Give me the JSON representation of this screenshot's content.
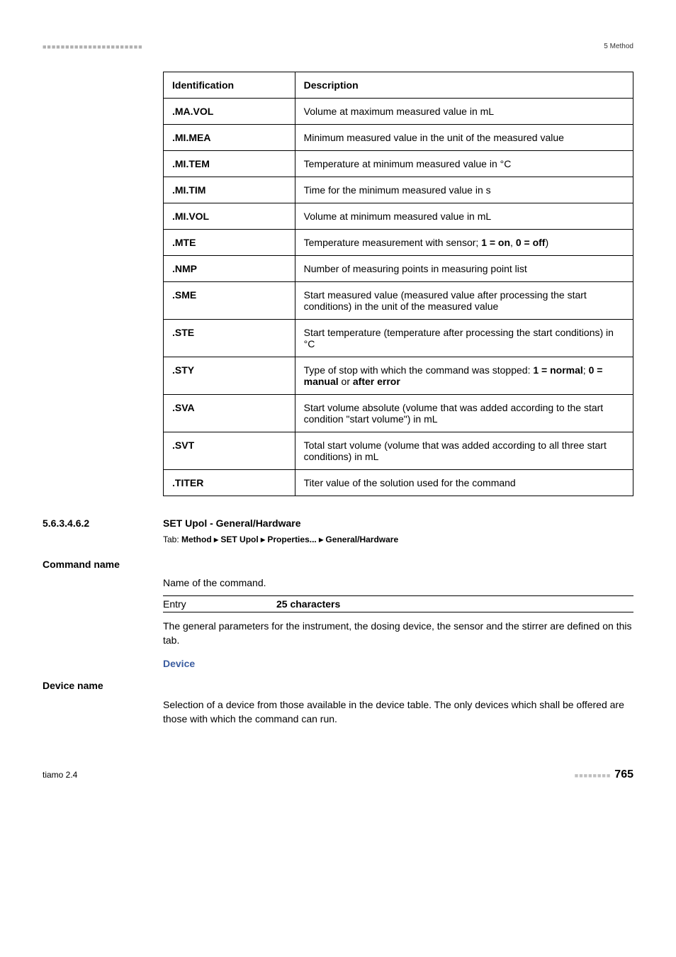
{
  "header": {
    "left_marks": "■■■■■■■■■■■■■■■■■■■■■■",
    "section": "5 Method"
  },
  "table": {
    "headers": [
      "Identification",
      "Description"
    ],
    "rows": [
      {
        "id": ".MA.VOL",
        "desc": "Volume at maximum measured value in mL"
      },
      {
        "id": ".MI.MEA",
        "desc": "Minimum measured value in the unit of the measured value"
      },
      {
        "id": ".MI.TEM",
        "desc": "Temperature at minimum measured value in °C"
      },
      {
        "id": ".MI.TIM",
        "desc": "Time for the minimum measured value in s"
      },
      {
        "id": ".MI.VOL",
        "desc": "Volume at minimum measured value in mL"
      },
      {
        "id": ".MTE",
        "desc_html": "Temperature measurement with sensor; <b>1 = on</b>, <b>0 = off</b>)"
      },
      {
        "id": ".NMP",
        "desc": "Number of measuring points in measuring point list"
      },
      {
        "id": ".SME",
        "desc": "Start measured value (measured value after processing the start conditions) in the unit of the measured value"
      },
      {
        "id": ".STE",
        "desc": "Start temperature (temperature after processing the start conditions) in °C"
      },
      {
        "id": ".STY",
        "desc_html": "Type of stop with which the command was stopped: <b>1 = normal</b>; <b>0 = manual</b> or <b>after error</b>"
      },
      {
        "id": ".SVA",
        "desc": "Start volume absolute (volume that was added according to the start condition \"start volume\") in mL"
      },
      {
        "id": ".SVT",
        "desc": "Total start volume (volume that was added according to all three start conditions) in mL"
      },
      {
        "id": ".TITER",
        "desc": "Titer value of the solution used for the command"
      }
    ]
  },
  "section": {
    "number": "5.6.3.4.6.2",
    "title": "SET Upol - General/Hardware",
    "tab_prefix": "Tab: ",
    "tab_path": "Method ▸ SET Upol ▸ Properties... ▸ General/Hardware"
  },
  "command_name": {
    "label": "Command name",
    "desc": "Name of the command.",
    "entry_label": "Entry",
    "entry_value": "25 characters",
    "note": "The general parameters for the instrument, the dosing device, the sensor and the stirrer are defined on this tab."
  },
  "device": {
    "heading": "Device",
    "label": "Device name",
    "desc": "Selection of a device from those available in the device table. The only devices which shall be offered are those with which the command can run."
  },
  "footer": {
    "left": "tiamo 2.4",
    "page_marks": "■■■■■■■■",
    "page_num": "765"
  }
}
